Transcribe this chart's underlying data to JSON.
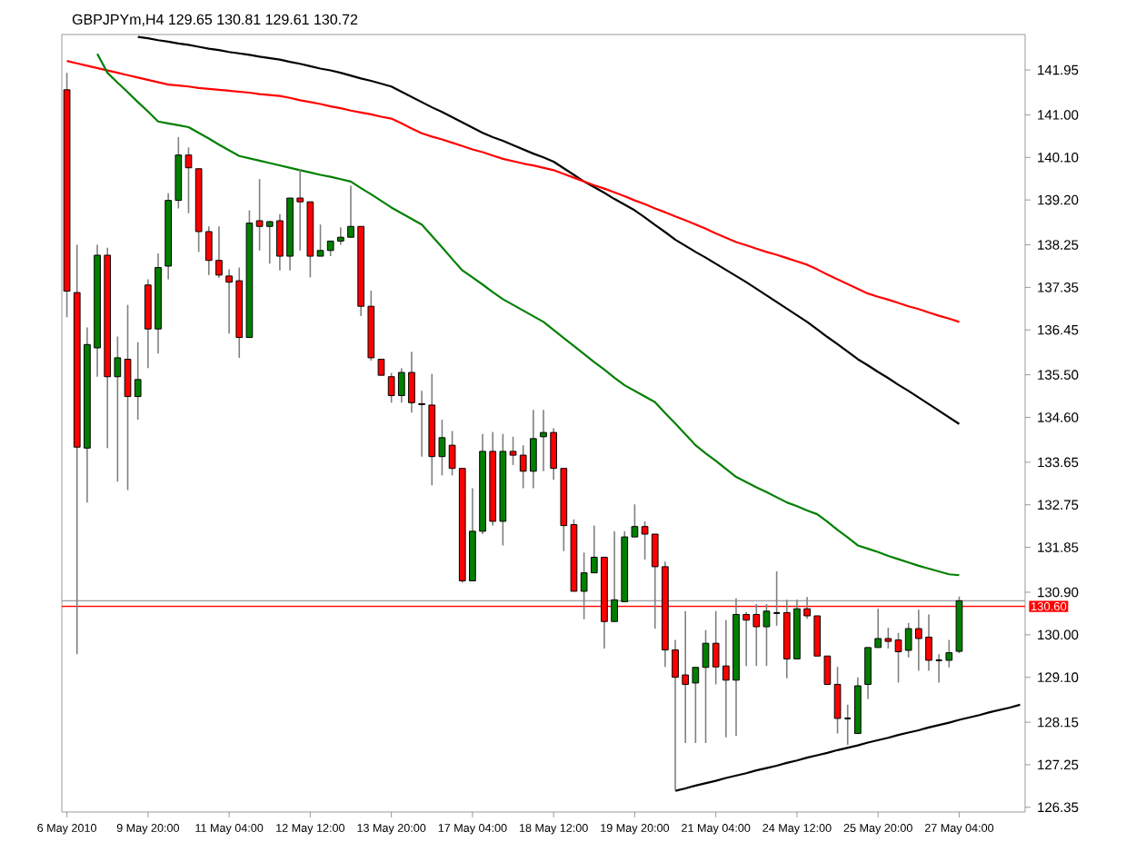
{
  "chart_data": {
    "type": "candlestick",
    "title": "GBPJPYm,H4  129.65 130.81 129.61 130.72",
    "categories": [
      "6 May 2010",
      null,
      null,
      null,
      null,
      null,
      null,
      null,
      "9 May 20:00",
      null,
      null,
      null,
      null,
      null,
      null,
      null,
      "11 May 04:00",
      null,
      null,
      null,
      null,
      null,
      null,
      null,
      "12 May 12:00",
      null,
      null,
      null,
      null,
      null,
      null,
      null,
      "13 May 20:00",
      null,
      null,
      null,
      null,
      null,
      null,
      null,
      "17 May 04:00",
      null,
      null,
      null,
      null,
      null,
      null,
      null,
      "18 May 12:00",
      null,
      null,
      null,
      null,
      null,
      null,
      null,
      "19 May 20:00",
      null,
      null,
      null,
      null,
      null,
      null,
      null,
      "21 May 04:00",
      null,
      null,
      null,
      null,
      null,
      null,
      null,
      "24 May 12:00",
      null,
      null,
      null,
      null,
      null,
      null,
      null,
      "25 May 20:00",
      null,
      null,
      null,
      null,
      null,
      null,
      null,
      "27 May 04:00",
      null,
      null,
      null,
      null,
      null,
      null
    ],
    "ohlc": [
      [
        141.53,
        141.89,
        136.72,
        137.27
      ],
      [
        137.24,
        138.25,
        129.59,
        133.97
      ],
      [
        133.95,
        136.5,
        132.8,
        136.14
      ],
      [
        136.07,
        138.25,
        135.46,
        138.03
      ],
      [
        138.03,
        138.19,
        133.95,
        135.46
      ],
      [
        135.46,
        136.31,
        133.24,
        135.86
      ],
      [
        135.83,
        136.98,
        133.06,
        135.04
      ],
      [
        135.04,
        136.19,
        134.55,
        135.4
      ],
      [
        137.4,
        137.52,
        135.64,
        136.47
      ],
      [
        136.47,
        138.07,
        135.95,
        137.77
      ],
      [
        137.8,
        139.34,
        137.52,
        139.19
      ],
      [
        139.19,
        140.53,
        139.02,
        140.15
      ],
      [
        140.15,
        140.31,
        138.92,
        139.88
      ],
      [
        139.86,
        139.86,
        138.1,
        138.53
      ],
      [
        138.53,
        138.64,
        137.61,
        137.92
      ],
      [
        137.92,
        138.64,
        137.55,
        137.61
      ],
      [
        137.59,
        137.73,
        136.37,
        137.46
      ],
      [
        137.49,
        137.77,
        135.86,
        136.29
      ],
      [
        136.29,
        138.98,
        136.29,
        138.71
      ],
      [
        138.76,
        139.64,
        138.13,
        138.64
      ],
      [
        138.64,
        138.76,
        137.85,
        138.74
      ],
      [
        138.76,
        138.9,
        137.71,
        138.01
      ],
      [
        138.01,
        139.24,
        137.71,
        139.24
      ],
      [
        139.24,
        139.85,
        138.13,
        139.16
      ],
      [
        139.16,
        139.16,
        137.56,
        138.01
      ],
      [
        138.01,
        138.68,
        138.01,
        138.13
      ],
      [
        138.13,
        138.33,
        138.01,
        138.33
      ],
      [
        138.33,
        138.62,
        138.25,
        138.41
      ],
      [
        138.41,
        139.5,
        138.41,
        138.64
      ],
      [
        138.64,
        138.64,
        136.74,
        136.95
      ],
      [
        136.95,
        137.28,
        135.8,
        135.86
      ],
      [
        135.83,
        135.83,
        135.49,
        135.49
      ],
      [
        135.46,
        135.54,
        134.91,
        135.06
      ],
      [
        135.06,
        135.64,
        134.91,
        135.55
      ],
      [
        135.55,
        135.99,
        134.7,
        134.91
      ],
      [
        134.89,
        135.16,
        133.77,
        134.87
      ],
      [
        134.86,
        135.52,
        133.16,
        133.77
      ],
      [
        133.77,
        134.55,
        133.37,
        134.17
      ],
      [
        134.01,
        134.31,
        133.37,
        133.52
      ],
      [
        133.52,
        133.52,
        131.1,
        131.14
      ],
      [
        131.14,
        133.1,
        131.14,
        132.19
      ],
      [
        132.19,
        134.25,
        132.13,
        133.88
      ],
      [
        133.88,
        134.29,
        132.31,
        132.4
      ],
      [
        132.4,
        134.25,
        131.89,
        133.88
      ],
      [
        133.88,
        134.19,
        133.59,
        133.8
      ],
      [
        133.8,
        134.01,
        133.1,
        133.46
      ],
      [
        133.46,
        134.76,
        133.1,
        134.15
      ],
      [
        134.19,
        134.76,
        133.46,
        134.28
      ],
      [
        134.28,
        134.37,
        133.28,
        133.52
      ],
      [
        133.52,
        133.52,
        131.77,
        132.31
      ],
      [
        132.33,
        132.44,
        130.92,
        130.92
      ],
      [
        130.92,
        131.74,
        130.33,
        131.31
      ],
      [
        131.31,
        132.31,
        131.31,
        131.64
      ],
      [
        131.64,
        131.64,
        129.71,
        130.28
      ],
      [
        130.28,
        132.19,
        130.28,
        130.74
      ],
      [
        130.7,
        132.19,
        130.7,
        132.07
      ],
      [
        132.07,
        132.76,
        132.07,
        132.29
      ],
      [
        132.29,
        132.4,
        131.59,
        132.13
      ],
      [
        132.13,
        132.13,
        130.13,
        131.44
      ],
      [
        131.44,
        131.55,
        129.32,
        129.68
      ],
      [
        129.68,
        129.89,
        126.7,
        129.1
      ],
      [
        129.15,
        130.5,
        127.71,
        128.95
      ],
      [
        128.98,
        129.31,
        127.71,
        129.31
      ],
      [
        129.31,
        130.1,
        127.71,
        129.82
      ],
      [
        129.82,
        130.5,
        128.95,
        129.32
      ],
      [
        129.34,
        130.31,
        127.83,
        129.04
      ],
      [
        129.04,
        130.77,
        127.86,
        130.43
      ],
      [
        130.43,
        130.48,
        129.34,
        130.31
      ],
      [
        130.43,
        130.65,
        129.34,
        130.17
      ],
      [
        130.17,
        130.65,
        129.34,
        130.5
      ],
      [
        130.46,
        131.34,
        130.19,
        130.46
      ],
      [
        130.47,
        130.74,
        129.08,
        129.49
      ],
      [
        129.49,
        130.74,
        129.49,
        130.55
      ],
      [
        130.55,
        130.8,
        130.34,
        130.4
      ],
      [
        130.4,
        130.4,
        129.55,
        129.55
      ],
      [
        129.55,
        129.55,
        128.95,
        128.95
      ],
      [
        128.95,
        129.32,
        127.91,
        128.23
      ],
      [
        128.23,
        128.52,
        127.67,
        128.23
      ],
      [
        127.91,
        129.1,
        127.91,
        128.92
      ],
      [
        128.95,
        129.73,
        128.64,
        129.73
      ],
      [
        129.73,
        130.55,
        129.73,
        129.92
      ],
      [
        129.92,
        130.15,
        129.71,
        129.86
      ],
      [
        129.89,
        130.04,
        128.99,
        129.64
      ],
      [
        129.67,
        130.25,
        129.52,
        130.13
      ],
      [
        130.13,
        130.53,
        129.24,
        129.92
      ],
      [
        129.95,
        130.43,
        129.24,
        129.46
      ],
      [
        129.46,
        129.59,
        128.99,
        129.46
      ],
      [
        129.46,
        129.89,
        129.31,
        129.62
      ],
      [
        129.65,
        130.81,
        129.61,
        130.72
      ],
      null,
      null,
      null,
      null,
      null,
      null
    ],
    "series": [
      {
        "type": "line",
        "color": "#000000",
        "values": [
          null,
          null,
          null,
          null,
          null,
          null,
          null,
          142.65,
          142.62,
          142.58,
          142.55,
          142.51,
          142.48,
          142.44,
          142.4,
          142.37,
          142.33,
          142.3,
          142.27,
          142.23,
          142.2,
          142.17,
          142.12,
          142.08,
          142.03,
          141.98,
          141.94,
          141.89,
          141.83,
          141.77,
          141.72,
          141.66,
          141.6,
          141.49,
          141.38,
          141.27,
          141.16,
          141.06,
          140.95,
          140.84,
          140.73,
          140.62,
          140.53,
          140.45,
          140.36,
          140.27,
          140.18,
          140.1,
          140.01,
          139.87,
          139.73,
          139.59,
          139.47,
          139.35,
          139.22,
          139.1,
          138.98,
          138.83,
          138.67,
          138.52,
          138.36,
          138.23,
          138.1,
          137.98,
          137.85,
          137.72,
          137.59,
          137.46,
          137.32,
          137.18,
          137.04,
          136.9,
          136.76,
          136.62,
          136.46,
          136.3,
          136.15,
          135.99,
          135.83,
          135.7,
          135.56,
          135.43,
          135.29,
          135.16,
          135.02,
          134.88,
          134.74,
          134.6,
          134.46,
          null,
          null,
          null,
          null,
          null,
          null
        ]
      },
      {
        "type": "line",
        "color": "#ff0000",
        "values": [
          142.14,
          142.09,
          142.04,
          141.99,
          141.94,
          141.89,
          141.84,
          141.79,
          141.74,
          141.69,
          141.64,
          141.62,
          141.6,
          141.57,
          141.55,
          141.53,
          141.51,
          141.49,
          141.47,
          141.44,
          141.42,
          141.4,
          141.36,
          141.31,
          141.27,
          141.23,
          141.18,
          141.14,
          141.09,
          141.05,
          141.01,
          140.96,
          140.92,
          140.82,
          140.71,
          140.61,
          140.54,
          140.48,
          140.41,
          140.34,
          140.27,
          140.21,
          140.14,
          140.07,
          140.02,
          139.97,
          139.93,
          139.88,
          139.83,
          139.75,
          139.67,
          139.59,
          139.51,
          139.44,
          139.36,
          139.28,
          139.19,
          139.11,
          139.02,
          138.94,
          138.85,
          138.77,
          138.68,
          138.59,
          138.49,
          138.4,
          138.31,
          138.24,
          138.17,
          138.1,
          138.04,
          137.97,
          137.9,
          137.83,
          137.73,
          137.62,
          137.52,
          137.42,
          137.32,
          137.22,
          137.15,
          137.09,
          137.02,
          136.95,
          136.89,
          136.82,
          136.75,
          136.69,
          136.62,
          null,
          null,
          null,
          null,
          null,
          null
        ]
      },
      {
        "type": "line",
        "color": "#008000",
        "values": [
          null,
          null,
          null,
          142.29,
          141.89,
          141.68,
          141.48,
          141.27,
          141.07,
          140.86,
          140.82,
          140.78,
          140.74,
          140.62,
          140.5,
          140.37,
          140.25,
          140.13,
          140.08,
          140.03,
          139.98,
          139.93,
          139.88,
          139.83,
          139.78,
          139.73,
          139.69,
          139.64,
          139.59,
          139.45,
          139.32,
          139.18,
          139.04,
          138.92,
          138.8,
          138.68,
          138.44,
          138.2,
          137.95,
          137.71,
          137.56,
          137.41,
          137.25,
          137.1,
          136.98,
          136.86,
          136.74,
          136.62,
          136.45,
          136.28,
          136.11,
          135.94,
          135.77,
          135.61,
          135.44,
          135.28,
          135.16,
          135.04,
          134.92,
          134.69,
          134.47,
          134.24,
          134.01,
          133.84,
          133.68,
          133.51,
          133.34,
          133.23,
          133.12,
          133.02,
          132.91,
          132.8,
          132.72,
          132.63,
          132.55,
          132.39,
          132.22,
          132.06,
          131.89,
          131.82,
          131.75,
          131.67,
          131.6,
          131.53,
          131.46,
          131.4,
          131.34,
          131.28,
          131.26,
          null,
          null,
          null,
          null,
          null,
          null
        ]
      },
      {
        "type": "line",
        "color": "#000000",
        "values": [
          null,
          null,
          null,
          null,
          null,
          null,
          null,
          null,
          null,
          null,
          null,
          null,
          null,
          null,
          null,
          null,
          null,
          null,
          null,
          null,
          null,
          null,
          null,
          null,
          null,
          null,
          null,
          null,
          null,
          null,
          null,
          null,
          null,
          null,
          null,
          null,
          null,
          null,
          null,
          null,
          null,
          null,
          null,
          null,
          null,
          null,
          null,
          null,
          null,
          null,
          null,
          null,
          null,
          null,
          null,
          null,
          null,
          null,
          null,
          null,
          126.7,
          126.75,
          126.81,
          126.86,
          126.91,
          126.97,
          127.02,
          127.07,
          127.13,
          127.18,
          127.23,
          127.29,
          127.34,
          127.4,
          127.45,
          127.5,
          127.56,
          127.61,
          127.66,
          127.72,
          127.77,
          127.82,
          127.88,
          127.93,
          127.98,
          128.04,
          128.09,
          128.14,
          128.2,
          128.25,
          128.3,
          128.36,
          128.41,
          128.46,
          128.52
        ]
      }
    ],
    "ref_lines": [
      {
        "axis": "y",
        "value": 130.72,
        "color": "#a0a0a0"
      },
      {
        "axis": "y",
        "value": 130.6,
        "color": "#ff0000",
        "label": "130.60"
      }
    ],
    "ylim": [
      126.25,
      142.7
    ],
    "yticks": [
      {
        "value": 141.95,
        "label": "141.95"
      },
      {
        "value": 141.0,
        "label": "141.00"
      },
      {
        "value": 140.1,
        "label": "140.10"
      },
      {
        "value": 139.2,
        "label": "139.20"
      },
      {
        "value": 138.25,
        "label": "138.25"
      },
      {
        "value": 137.35,
        "label": "137.35"
      },
      {
        "value": 136.45,
        "label": "136.45"
      },
      {
        "value": 135.5,
        "label": "135.50"
      },
      {
        "value": 134.6,
        "label": "134.60"
      },
      {
        "value": 133.65,
        "label": "133.65"
      },
      {
        "value": 132.75,
        "label": "132.75"
      },
      {
        "value": 131.85,
        "label": "131.85"
      },
      {
        "value": 130.9,
        "label": "130.90"
      },
      {
        "value": 130.0,
        "label": "130.00"
      },
      {
        "value": 129.1,
        "label": "129.10"
      },
      {
        "value": 128.15,
        "label": "128.15"
      },
      {
        "value": 127.25,
        "label": "127.25"
      },
      {
        "value": 126.35,
        "label": "126.35"
      }
    ]
  }
}
